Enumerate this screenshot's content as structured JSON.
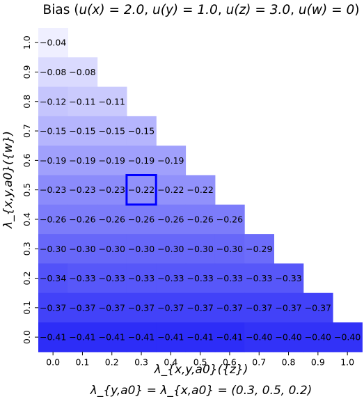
{
  "chart_data": {
    "type": "heatmap",
    "title": "Bias (u(x) = 2.0, u(y) = 1.0, u(z) = 3.0, u(w) = 0)",
    "title_parts": {
      "prefix": "Bias (",
      "ux": "u(x) = 2.0",
      "uy": "u(y) = 1.0",
      "uz": "u(z) = 3.0",
      "uw": "u(w) = 0",
      "suffix": ")"
    },
    "xlabel": "λ_{x,y,a0}({z})",
    "ylabel": "λ_{x,y,a0}({w})",
    "subtitle": "λ_{y,a0} = λ_{x,a0} = (0.3, 0.5, 0.2)",
    "x_ticks": [
      "0.0",
      "0.1",
      "0.2",
      "0.3",
      "0.4",
      "0.5",
      "0.6",
      "0.7",
      "0.8",
      "0.9",
      "1.0"
    ],
    "y_ticks": [
      "1.0",
      "0.9",
      "0.8",
      "0.7",
      "0.6",
      "0.5",
      "0.4",
      "0.3",
      "0.2",
      "0.1",
      "0.0"
    ],
    "rows": [
      {
        "y": "1.0",
        "values": [
          "−0.04"
        ]
      },
      {
        "y": "0.9",
        "values": [
          "−0.08",
          "−0.08"
        ]
      },
      {
        "y": "0.8",
        "values": [
          "−0.12",
          "−0.11",
          "−0.11"
        ]
      },
      {
        "y": "0.7",
        "values": [
          "−0.15",
          "−0.15",
          "−0.15",
          "−0.15"
        ]
      },
      {
        "y": "0.6",
        "values": [
          "−0.19",
          "−0.19",
          "−0.19",
          "−0.19",
          "−0.19"
        ]
      },
      {
        "y": "0.5",
        "values": [
          "−0.23",
          "−0.23",
          "−0.23",
          "−0.22",
          "−0.22",
          "−0.22"
        ]
      },
      {
        "y": "0.4",
        "values": [
          "−0.26",
          "−0.26",
          "−0.26",
          "−0.26",
          "−0.26",
          "−0.26",
          "−0.26"
        ]
      },
      {
        "y": "0.3",
        "values": [
          "−0.30",
          "−0.30",
          "−0.30",
          "−0.30",
          "−0.30",
          "−0.30",
          "−0.30",
          "−0.29"
        ]
      },
      {
        "y": "0.2",
        "values": [
          "−0.34",
          "−0.33",
          "−0.33",
          "−0.33",
          "−0.33",
          "−0.33",
          "−0.33",
          "−0.33",
          "−0.33"
        ]
      },
      {
        "y": "0.1",
        "values": [
          "−0.37",
          "−0.37",
          "−0.37",
          "−0.37",
          "−0.37",
          "−0.37",
          "−0.37",
          "−0.37",
          "−0.37",
          "−0.37"
        ]
      },
      {
        "y": "0.0",
        "values": [
          "−0.41",
          "−0.41",
          "−0.41",
          "−0.41",
          "−0.41",
          "−0.41",
          "−0.41",
          "−0.40",
          "−0.40",
          "−0.40",
          "−0.40"
        ]
      }
    ],
    "highlight": {
      "x": "0.3",
      "y": "0.5",
      "value": "−0.22",
      "color": "#0000ff"
    },
    "colors": {
      "low": "#2d2df7",
      "high": "#efefff"
    }
  }
}
